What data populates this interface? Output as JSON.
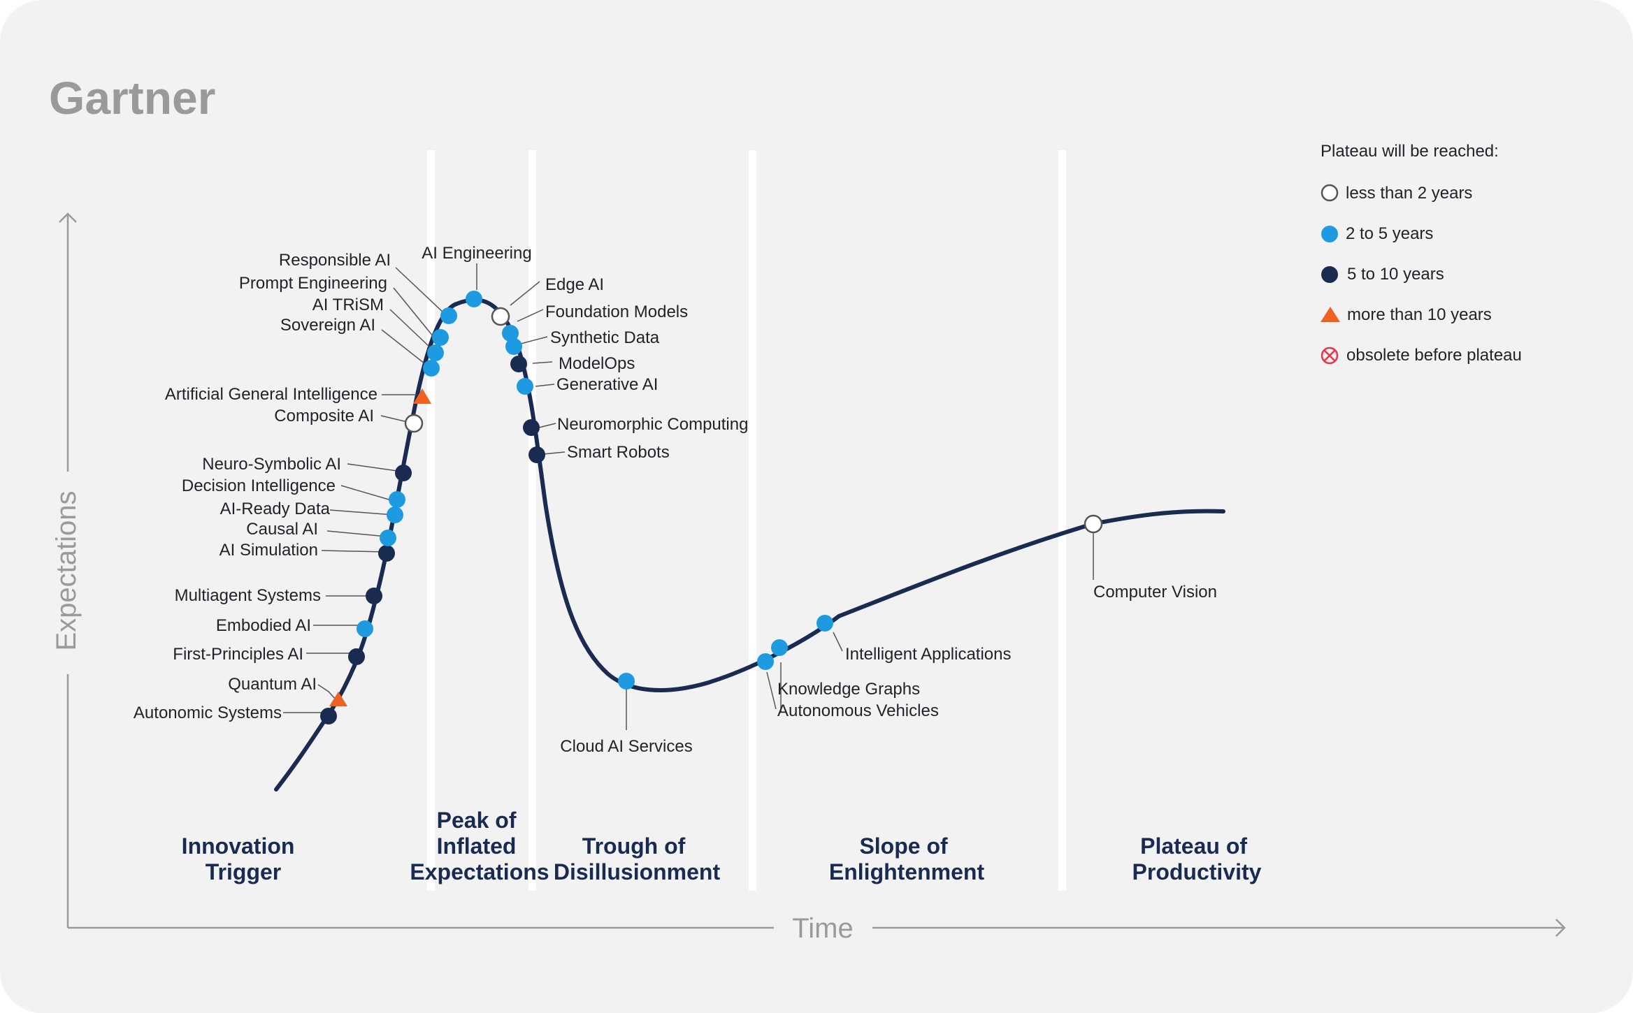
{
  "logo": "Gartner",
  "colors": {
    "background": "#f2f2f2",
    "curve": "#1a2b52",
    "less_than_2": "#ffffff",
    "two_to_five": "#1e9be0",
    "five_to_ten": "#1a2b52",
    "more_than_10": "#f0601e",
    "obsolete": "#e8334a"
  },
  "legend": {
    "title": "Plateau will be reached:",
    "items": [
      {
        "key": "lt2",
        "label": "less than 2 years",
        "marker": "open-circle"
      },
      {
        "key": "2to5",
        "label": "2 to 5 years",
        "marker": "blue-circle"
      },
      {
        "key": "5to10",
        "label": "5 to 10 years",
        "marker": "navy-circle"
      },
      {
        "key": "gt10",
        "label": "more than 10 years",
        "marker": "orange-triangle"
      },
      {
        "key": "obs",
        "label": "obsolete before plateau",
        "marker": "crossed-circle-icon"
      }
    ]
  },
  "chart_data": {
    "type": "scatter",
    "xlabel": "Time",
    "ylabel": "Expectations",
    "phases": [
      "Innovation Trigger",
      "Peak of Inflated Expectations",
      "Trough of Disillusionment",
      "Slope of Enlightenment",
      "Plateau of Productivity"
    ],
    "phase_lines": [
      [
        "Innovation",
        "Trigger"
      ],
      [
        "Peak of",
        "Inflated",
        "Expectations"
      ],
      [
        "Trough of",
        "Disillusionment"
      ],
      [
        "Slope of",
        "Enlightenment"
      ],
      [
        "Plateau of",
        "Productivity"
      ]
    ],
    "points": [
      {
        "name": "Autonomic Systems",
        "plateau": "5to10"
      },
      {
        "name": "Quantum AI",
        "plateau": "gt10"
      },
      {
        "name": "First-Principles AI",
        "plateau": "5to10"
      },
      {
        "name": "Embodied AI",
        "plateau": "2to5"
      },
      {
        "name": "Multiagent Systems",
        "plateau": "5to10"
      },
      {
        "name": "AI Simulation",
        "plateau": "5to10"
      },
      {
        "name": "Causal AI",
        "plateau": "2to5"
      },
      {
        "name": "AI-Ready Data",
        "plateau": "2to5"
      },
      {
        "name": "Decision Intelligence",
        "plateau": "2to5"
      },
      {
        "name": "Neuro-Symbolic AI",
        "plateau": "5to10"
      },
      {
        "name": "Composite AI",
        "plateau": "lt2"
      },
      {
        "name": "Artificial General Intelligence",
        "plateau": "gt10"
      },
      {
        "name": "Sovereign AI",
        "plateau": "2to5"
      },
      {
        "name": "AI TRiSM",
        "plateau": "2to5"
      },
      {
        "name": "Prompt Engineering",
        "plateau": "2to5"
      },
      {
        "name": "Responsible AI",
        "plateau": "2to5"
      },
      {
        "name": "AI Engineering",
        "plateau": "2to5"
      },
      {
        "name": "Edge AI",
        "plateau": "lt2"
      },
      {
        "name": "Foundation Models",
        "plateau": "2to5"
      },
      {
        "name": "Synthetic Data",
        "plateau": "2to5"
      },
      {
        "name": "ModelOps",
        "plateau": "5to10"
      },
      {
        "name": "Generative AI",
        "plateau": "2to5"
      },
      {
        "name": "Neuromorphic Computing",
        "plateau": "5to10"
      },
      {
        "name": "Smart Robots",
        "plateau": "5to10"
      },
      {
        "name": "Cloud AI Services",
        "plateau": "2to5"
      },
      {
        "name": "Autonomous Vehicles",
        "plateau": "2to5"
      },
      {
        "name": "Knowledge Graphs",
        "plateau": "2to5"
      },
      {
        "name": "Intelligent Applications",
        "plateau": "2to5"
      },
      {
        "name": "Computer Vision",
        "plateau": "lt2"
      }
    ]
  }
}
